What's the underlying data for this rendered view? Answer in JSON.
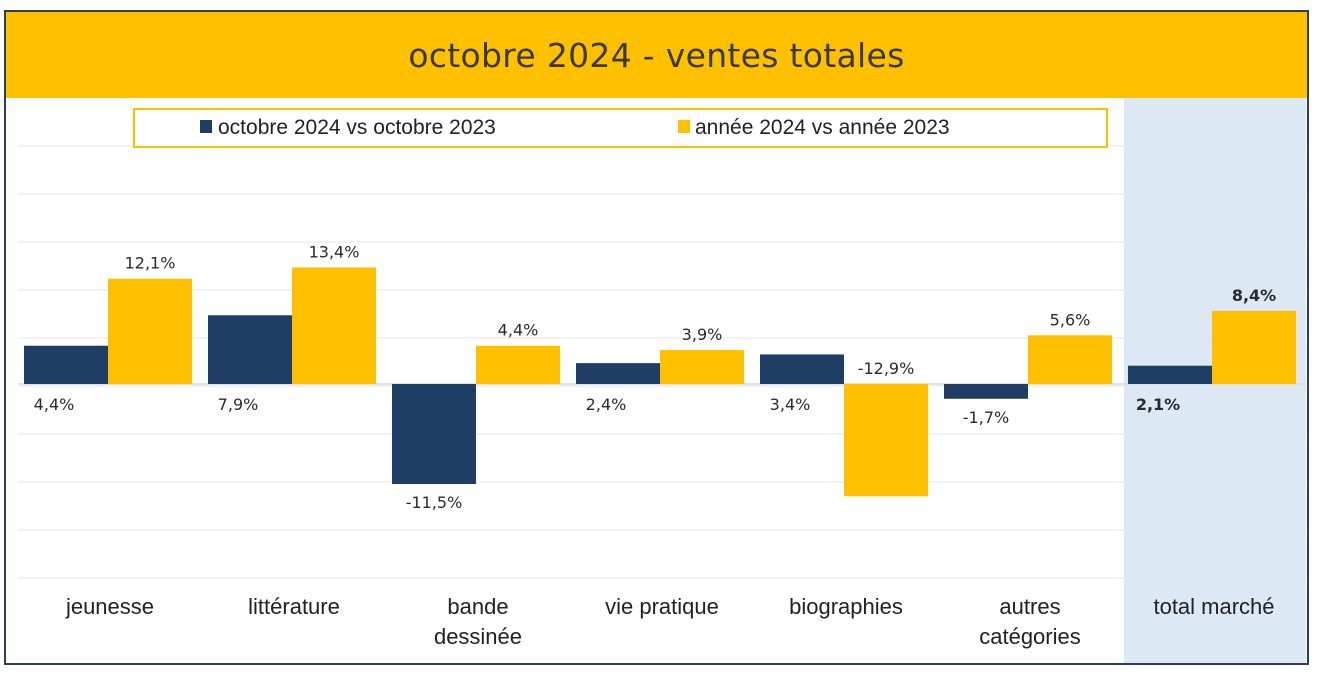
{
  "title": "octobre 2024 - ventes totales",
  "colors": {
    "series_1": "#1f3e65",
    "series_2": "#ffc000",
    "highlight_band": "#dde8f5",
    "gridline": "#e4e4e4",
    "label_text": "#2b2b2b",
    "frame": "#2e3e55"
  },
  "chart_data": {
    "type": "bar",
    "title": "octobre 2024 - ventes totales",
    "categories": [
      "jeunesse",
      "littérature",
      "bande dessinée",
      "vie pratique",
      "biographies",
      "autres catégories",
      "total marché"
    ],
    "series": [
      {
        "name": "octobre 2024 vs octobre 2023",
        "values": [
          4.4,
          7.9,
          -11.5,
          2.4,
          3.4,
          -1.7,
          2.1
        ],
        "labels": [
          "4,4%",
          "7,9%",
          "-11,5%",
          "2,4%",
          "3,4%",
          "-1,7%",
          "2,1%"
        ]
      },
      {
        "name": "année 2024 vs année 2023",
        "values": [
          12.1,
          13.4,
          4.4,
          3.9,
          -12.9,
          5.6,
          8.4
        ],
        "labels": [
          "12,1%",
          "13,4%",
          "4,4%",
          "3,9%",
          "-12,9%",
          "5,6%",
          "8,4%"
        ]
      }
    ],
    "ylim": [
      -20,
      30
    ],
    "grid": true,
    "legend_position": "top",
    "highlighted_category": "total marché",
    "xlabel": "",
    "ylabel": ""
  }
}
